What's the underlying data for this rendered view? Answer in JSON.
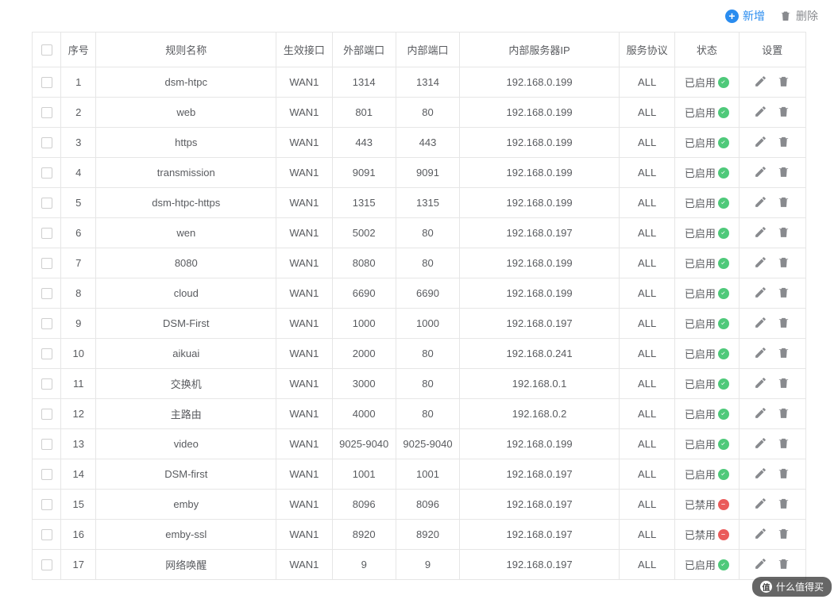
{
  "toolbar": {
    "add_label": "新增",
    "delete_label": "删除"
  },
  "columns": {
    "seq": "序号",
    "name": "规则名称",
    "interface": "生效接口",
    "ext_port": "外部端口",
    "int_port": "内部端口",
    "server_ip": "内部服务器IP",
    "protocol": "服务协议",
    "status": "状态",
    "ops": "设置"
  },
  "status_labels": {
    "enabled": "已启用",
    "disabled": "已禁用"
  },
  "colors": {
    "accent": "#2a8cef",
    "border": "#e6e6e6",
    "text": "#595b5f",
    "icon_grey": "#888a8e",
    "enabled_badge": "#4fc97a",
    "disabled_badge": "#ea5b5b"
  },
  "rows": [
    {
      "seq": "1",
      "name": "dsm-htpc",
      "intf": "WAN1",
      "ext": "1314",
      "int": "1314",
      "ip": "192.168.0.199",
      "proto": "ALL",
      "status": "enabled"
    },
    {
      "seq": "2",
      "name": "web",
      "intf": "WAN1",
      "ext": "801",
      "int": "80",
      "ip": "192.168.0.199",
      "proto": "ALL",
      "status": "enabled"
    },
    {
      "seq": "3",
      "name": "https",
      "intf": "WAN1",
      "ext": "443",
      "int": "443",
      "ip": "192.168.0.199",
      "proto": "ALL",
      "status": "enabled"
    },
    {
      "seq": "4",
      "name": "transmission",
      "intf": "WAN1",
      "ext": "9091",
      "int": "9091",
      "ip": "192.168.0.199",
      "proto": "ALL",
      "status": "enabled"
    },
    {
      "seq": "5",
      "name": "dsm-htpc-https",
      "intf": "WAN1",
      "ext": "1315",
      "int": "1315",
      "ip": "192.168.0.199",
      "proto": "ALL",
      "status": "enabled"
    },
    {
      "seq": "6",
      "name": "wen",
      "intf": "WAN1",
      "ext": "5002",
      "int": "80",
      "ip": "192.168.0.197",
      "proto": "ALL",
      "status": "enabled"
    },
    {
      "seq": "7",
      "name": "8080",
      "intf": "WAN1",
      "ext": "8080",
      "int": "80",
      "ip": "192.168.0.199",
      "proto": "ALL",
      "status": "enabled"
    },
    {
      "seq": "8",
      "name": "cloud",
      "intf": "WAN1",
      "ext": "6690",
      "int": "6690",
      "ip": "192.168.0.199",
      "proto": "ALL",
      "status": "enabled"
    },
    {
      "seq": "9",
      "name": "DSM-First",
      "intf": "WAN1",
      "ext": "1000",
      "int": "1000",
      "ip": "192.168.0.197",
      "proto": "ALL",
      "status": "enabled"
    },
    {
      "seq": "10",
      "name": "aikuai",
      "intf": "WAN1",
      "ext": "2000",
      "int": "80",
      "ip": "192.168.0.241",
      "proto": "ALL",
      "status": "enabled"
    },
    {
      "seq": "11",
      "name": "交换机",
      "intf": "WAN1",
      "ext": "3000",
      "int": "80",
      "ip": "192.168.0.1",
      "proto": "ALL",
      "status": "enabled"
    },
    {
      "seq": "12",
      "name": "主路由",
      "intf": "WAN1",
      "ext": "4000",
      "int": "80",
      "ip": "192.168.0.2",
      "proto": "ALL",
      "status": "enabled"
    },
    {
      "seq": "13",
      "name": "video",
      "intf": "WAN1",
      "ext": "9025-9040",
      "int": "9025-9040",
      "ip": "192.168.0.199",
      "proto": "ALL",
      "status": "enabled"
    },
    {
      "seq": "14",
      "name": "DSM-first",
      "intf": "WAN1",
      "ext": "1001",
      "int": "1001",
      "ip": "192.168.0.197",
      "proto": "ALL",
      "status": "enabled"
    },
    {
      "seq": "15",
      "name": "emby",
      "intf": "WAN1",
      "ext": "8096",
      "int": "8096",
      "ip": "192.168.0.197",
      "proto": "ALL",
      "status": "disabled"
    },
    {
      "seq": "16",
      "name": "emby-ssl",
      "intf": "WAN1",
      "ext": "8920",
      "int": "8920",
      "ip": "192.168.0.197",
      "proto": "ALL",
      "status": "disabled"
    },
    {
      "seq": "17",
      "name": "网络唤醒",
      "intf": "WAN1",
      "ext": "9",
      "int": "9",
      "ip": "192.168.0.197",
      "proto": "ALL",
      "status": "enabled"
    }
  ],
  "watermark": {
    "text": "什么值得买",
    "icon_char": "值"
  }
}
